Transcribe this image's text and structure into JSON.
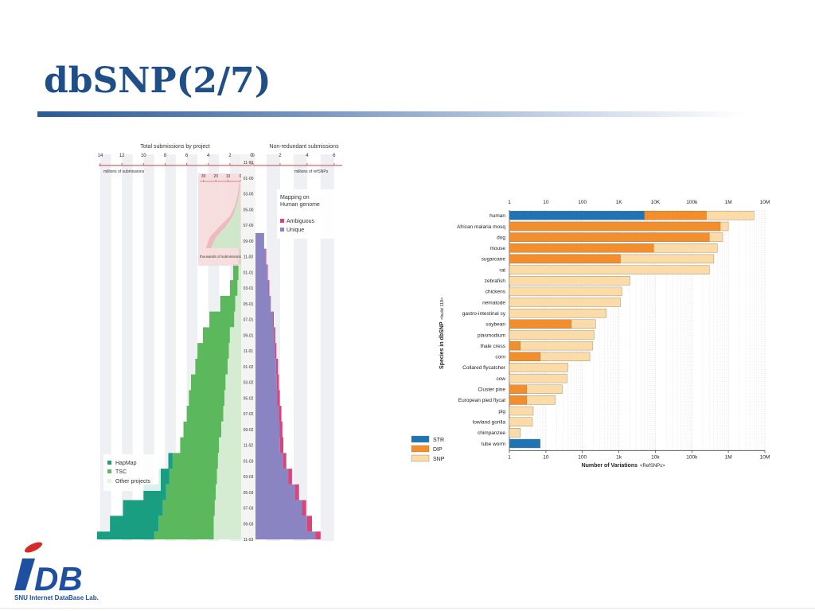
{
  "slide": {
    "title": "dbSNP(2/7)"
  },
  "logo": {
    "mark": "DB",
    "caption": "SNU Internet DataBase Lab."
  },
  "chart_data": [
    {
      "type": "area",
      "left_title": "Total submissions by project",
      "right_title": "Non-redundant submissions",
      "left_axis_ticks": [
        "14",
        "12",
        "10",
        "8",
        "6",
        "4",
        "2",
        "0"
      ],
      "right_axis_ticks": [
        "0",
        "2",
        "4",
        "6"
      ],
      "left_axis_unit": "millions of submissions",
      "right_axis_unit": "millions of refSNPs",
      "time_labels": [
        "11-99",
        "01-00",
        "03-00",
        "05-00",
        "07-00",
        "09-00",
        "11-00",
        "01-01",
        "03-01",
        "05-01",
        "07-01",
        "09-01",
        "11-01",
        "01-02",
        "03-02",
        "05-02",
        "07-02",
        "09-02",
        "11-02",
        "01-03",
        "03-03",
        "05-03",
        "07-03",
        "09-03",
        "11-03"
      ],
      "inset": {
        "ticks": [
          "30",
          "20",
          "10",
          "0"
        ],
        "axis_note": "thousands of submissions",
        "months": [
          "11-99",
          "01-00",
          "03-00",
          "05-00",
          "07-00",
          "09-00",
          "11-00"
        ],
        "ambiguous_k": [
          1,
          2,
          4,
          8,
          17,
          25,
          28
        ],
        "unique_k": [
          0.5,
          1,
          3,
          6,
          12,
          20,
          24
        ]
      },
      "mapping_legend": {
        "title": "Mapping on Human genome",
        "items": [
          "Ambiguous",
          "Unique"
        ]
      },
      "project_legend": [
        "HapMap",
        "TSC",
        "Other projects"
      ],
      "colors": {
        "hapmap": "#1a9e82",
        "tsc": "#5cb85c",
        "other": "#d6ecd2",
        "unique": "#8a84c2",
        "ambiguous": "#d9447a",
        "inset_bg": "#f5d3d3"
      },
      "other_millions": [
        0,
        0,
        0,
        0,
        0.1,
        0.3,
        0.9,
        1.2,
        1.3,
        1.5,
        1.6,
        2.0,
        2.1,
        2.2,
        2.4,
        2.5,
        2.6,
        2.8,
        3.0,
        3.1,
        3.2,
        3.3,
        3.4,
        3.5,
        3.5
      ],
      "tsc_millions": [
        0,
        0,
        0,
        0,
        0,
        0.1,
        0.3,
        0.5,
        0.7,
        1.4,
        2.3,
        2.5,
        2.9,
        3.0,
        3.2,
        3.3,
        3.4,
        3.5,
        3.6,
        4.2,
        4.4,
        4.6,
        4.8,
        5.1,
        5.5
      ],
      "hapmap_millions": [
        0,
        0,
        0,
        0,
        0,
        0,
        0,
        0,
        0,
        0,
        0,
        0,
        0,
        0,
        0,
        0,
        0,
        0,
        0,
        0.4,
        1.0,
        2.1,
        3.7,
        4.5,
        5.3
      ],
      "unique_millions": [
        0,
        0,
        0,
        0,
        0,
        0.8,
        0.95,
        1.05,
        1.15,
        1.25,
        1.45,
        1.55,
        1.6,
        1.7,
        1.75,
        1.8,
        1.9,
        1.95,
        2.0,
        2.2,
        2.6,
        3.1,
        3.6,
        4.0,
        4.6
      ],
      "ambiguous_millions": [
        0,
        0,
        0,
        0,
        0,
        0.02,
        0.03,
        0.04,
        0.05,
        0.06,
        0.08,
        0.1,
        0.12,
        0.14,
        0.16,
        0.18,
        0.2,
        0.22,
        0.24,
        0.26,
        0.28,
        0.3,
        0.33,
        0.36,
        0.4
      ]
    },
    {
      "type": "bar",
      "orientation": "horizontal",
      "x_scale": "log",
      "xlim": [
        1,
        10000000
      ],
      "x_ticks": [
        "1",
        "10",
        "100",
        "1K",
        "10K",
        "100k",
        "1M",
        "10M"
      ],
      "x_ticks_bottom": [
        "1",
        "10",
        "100",
        "1k",
        "10k",
        "100k",
        "1M",
        "10M"
      ],
      "xlabel": "Number of Variations",
      "xlabel_note": "<RefSNPs>",
      "ylabel": "Species in dbSNP",
      "ylabel_note": "<build 118>",
      "colors": {
        "STR": "#1f74b6",
        "DIP": "#f28e2b",
        "SNP": "#fbdba8"
      },
      "legend": [
        "STR",
        "DIP",
        "SNP"
      ],
      "categories": [
        "human",
        "African malaria mosq",
        "dog",
        "mouse",
        "sugarcane",
        "rat",
        "zebrafish",
        "chickens",
        "nematode",
        "gastro-intestinal sy",
        "soybean",
        "plasmodium",
        "thale cress",
        "corn",
        "Collared flycatcher",
        "cow",
        "Cluster pine",
        "European pied flycat",
        "pig",
        "lowland gorilla",
        "chimpanzee",
        "tube worm"
      ],
      "series": [
        {
          "name": "STR",
          "values": [
            5000,
            0,
            0,
            0,
            0,
            0,
            0,
            0,
            0,
            0,
            0,
            0,
            0,
            0,
            0,
            0,
            0,
            0,
            0,
            0,
            0,
            7
          ]
        },
        {
          "name": "DIP",
          "values": [
            250000,
            600000,
            300000,
            9000,
            1100,
            0,
            0,
            0,
            0,
            0,
            50,
            0,
            2,
            7,
            0,
            0,
            3,
            3,
            0,
            0,
            0,
            0
          ]
        },
        {
          "name": "SNP",
          "values": [
            5000000,
            1000000,
            700000,
            500000,
            400000,
            300000,
            2000,
            1200,
            1100,
            450,
            230,
            210,
            190,
            160,
            40,
            38,
            28,
            18,
            4.5,
            4.3,
            2,
            0
          ]
        }
      ]
    }
  ]
}
